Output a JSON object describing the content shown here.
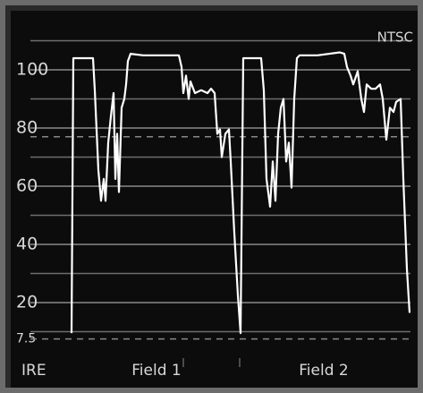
{
  "chart_data": {
    "type": "line",
    "label": "NTSC",
    "y_unit_label": "IRE",
    "field_labels": [
      "Field 1",
      "Field 2"
    ],
    "xlim": [
      0,
      443
    ],
    "ylim": [
      -6,
      114
    ],
    "yticks": [
      7.5,
      20,
      40,
      60,
      80,
      100
    ],
    "minor_yticks": [
      10,
      30,
      50,
      70,
      90,
      110
    ],
    "reference_lines": [
      7.5,
      77
    ],
    "grid": true,
    "series": [
      {
        "color": "#ffffff",
        "x": [
          58,
          60,
          82,
          84,
          88,
          91,
          94,
          96,
          99,
          102,
          105,
          107,
          109,
          111,
          114,
          117,
          119,
          121,
          124,
          138,
          178,
          181,
          183,
          186,
          189,
          191,
          196,
          203,
          210,
          214,
          218,
          221,
          224,
          226,
          230,
          234,
          236,
          240,
          244,
          247,
          250,
          270,
          273,
          276,
          280,
          283,
          286,
          289,
          292,
          295,
          298,
          301,
          304,
          307,
          310,
          313,
          333,
          358,
          363,
          366,
          370,
          373,
          378,
          382,
          385,
          388,
          393,
          398,
          403,
          406,
          410,
          414,
          418,
          421,
          426,
          429,
          433,
          436
        ],
        "values": [
          9.5,
          104,
          104,
          93,
          65.5,
          55,
          62.5,
          55,
          75,
          84,
          92,
          62.5,
          78,
          58,
          87,
          90,
          95,
          103,
          105.5,
          105,
          105,
          101,
          92,
          98,
          90,
          96,
          92,
          93,
          92,
          93.5,
          92,
          78,
          79.5,
          70,
          78,
          79.5,
          68.5,
          44,
          22.5,
          9.5,
          104,
          104,
          93,
          62.5,
          53,
          68.5,
          55,
          78,
          87,
          90,
          68.5,
          75,
          59.5,
          90,
          104,
          105,
          105,
          106,
          105.5,
          101,
          98,
          95,
          99.5,
          90,
          85.5,
          95,
          93.5,
          93.5,
          95,
          90,
          76,
          87,
          85.5,
          89,
          90,
          62.5,
          31.5,
          16.5
        ]
      }
    ]
  }
}
